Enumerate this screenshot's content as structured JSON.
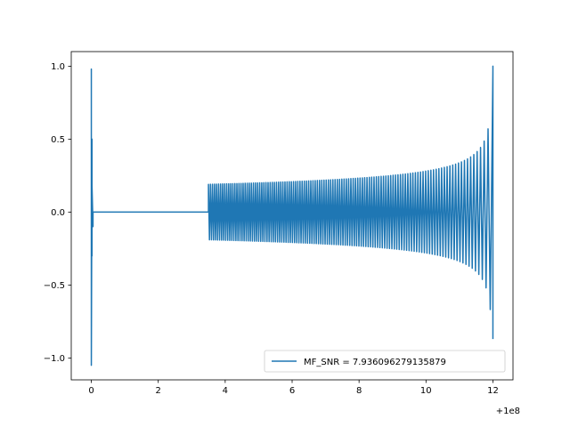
{
  "chart_data": {
    "type": "line",
    "title": "",
    "xlabel": "",
    "ylabel": "",
    "x_offset_label": "+1e8",
    "xlim": [
      -0.6,
      12.6
    ],
    "ylim": [
      -1.15,
      1.1
    ],
    "x_ticks": [
      0,
      2,
      4,
      6,
      8,
      10,
      12
    ],
    "x_tick_labels": [
      "0",
      "2",
      "4",
      "6",
      "8",
      "10",
      "12"
    ],
    "y_ticks": [
      -1.0,
      -0.5,
      0.0,
      0.5,
      1.0
    ],
    "y_tick_labels": [
      "−1.0",
      "−0.5",
      "0.0",
      "0.5",
      "1.0"
    ],
    "grid": false,
    "legend_location": "lower-right",
    "series": [
      {
        "name": "MF_SNR = 7.936096279135879",
        "color": "#1f77b4",
        "segments": [
          {
            "kind": "spike",
            "x": [
              0.0,
              0.0,
              0.0,
              0.0,
              0.0,
              0.02,
              0.02,
              0.02,
              0.05,
              0.05,
              0.1
            ],
            "y": [
              0.0,
              0.9,
              -0.9,
              0.98,
              -1.05,
              0.5,
              -0.3,
              0.18,
              -0.1,
              0.0,
              0.0
            ]
          },
          {
            "kind": "flat",
            "x": [
              0.1,
              3.5
            ],
            "y": [
              0.0,
              0.0
            ]
          },
          {
            "kind": "oscillation",
            "x_start": 3.5,
            "x_end": 12.0,
            "cycles": 120,
            "amplitude_start": 0.19,
            "amplitude_end": 1.0,
            "final_y": -0.87
          }
        ]
      }
    ]
  }
}
